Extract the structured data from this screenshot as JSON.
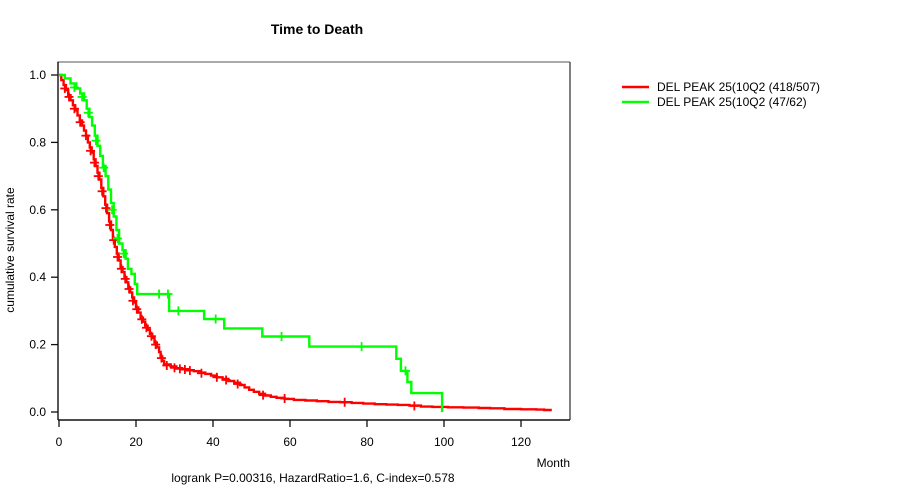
{
  "title": "Time to Death",
  "footer": "logrank P=0.00316, HazardRatio=1.6, C-index=0.578",
  "axes": {
    "y": {
      "label": "cumulative survival rate"
    },
    "x": {
      "label": "Month"
    }
  },
  "legend": {
    "items": [
      {
        "label": "DEL PEAK 25(10Q2 (418/507)",
        "color": "#ff0000"
      },
      {
        "label": "DEL PEAK 25(10Q2 (47/62)",
        "color": "#00ff00"
      }
    ]
  },
  "colors": {
    "series_red": "#ff0000",
    "series_green": "#00ff00",
    "frame_top": "#8e8e8e",
    "axis": "#111111",
    "text": "#000000",
    "background": "#ffffff"
  },
  "chart_data": {
    "type": "line",
    "subtype": "kaplan-meier-step",
    "title": "Time to Death",
    "xlabel": "Month",
    "ylabel": "cumulative survival rate",
    "xlim": [
      0,
      132.5
    ],
    "ylim": [
      0,
      1.04
    ],
    "x_ticks": [
      0,
      20,
      40,
      60,
      80,
      100,
      120
    ],
    "y_ticks": [
      0.0,
      0.2,
      0.4,
      0.6,
      0.8,
      1.0
    ],
    "grid": false,
    "legend_position": "right-outside",
    "annotation": "logrank P=0.00316, HazardRatio=1.6, C-index=0.578",
    "series": [
      {
        "name": "DEL PEAK 25(10Q2 (418/507)",
        "color": "#ff0000",
        "steps": [
          [
            0,
            1.0
          ],
          [
            0.6,
            0.985
          ],
          [
            1.2,
            0.97
          ],
          [
            1.8,
            0.955
          ],
          [
            2.4,
            0.94
          ],
          [
            3,
            0.925
          ],
          [
            3.6,
            0.91
          ],
          [
            4.2,
            0.895
          ],
          [
            4.8,
            0.88
          ],
          [
            5.4,
            0.865
          ],
          [
            6,
            0.85
          ],
          [
            6.5,
            0.835
          ],
          [
            7,
            0.82
          ],
          [
            7.5,
            0.8
          ],
          [
            8,
            0.785
          ],
          [
            8.5,
            0.77
          ],
          [
            9,
            0.75
          ],
          [
            9.5,
            0.73
          ],
          [
            10,
            0.71
          ],
          [
            10.5,
            0.69
          ],
          [
            11,
            0.665
          ],
          [
            11.5,
            0.64
          ],
          [
            12,
            0.615
          ],
          [
            12.5,
            0.59
          ],
          [
            13,
            0.565
          ],
          [
            13.5,
            0.54
          ],
          [
            14,
            0.515
          ],
          [
            14.5,
            0.49
          ],
          [
            15,
            0.47
          ],
          [
            15.5,
            0.45
          ],
          [
            16,
            0.43
          ],
          [
            16.5,
            0.415
          ],
          [
            17,
            0.4
          ],
          [
            17.5,
            0.385
          ],
          [
            18,
            0.37
          ],
          [
            18.5,
            0.355
          ],
          [
            19,
            0.34
          ],
          [
            19.5,
            0.325
          ],
          [
            20,
            0.31
          ],
          [
            20.6,
            0.295
          ],
          [
            21.2,
            0.28
          ],
          [
            21.8,
            0.268
          ],
          [
            22.4,
            0.256
          ],
          [
            23,
            0.244
          ],
          [
            23.6,
            0.232
          ],
          [
            24.2,
            0.22
          ],
          [
            24.8,
            0.206
          ],
          [
            25.4,
            0.192
          ],
          [
            26,
            0.178
          ],
          [
            26.4,
            0.165
          ],
          [
            26.8,
            0.152
          ],
          [
            27.3,
            0.141
          ],
          [
            29,
            0.135
          ],
          [
            30.5,
            0.13
          ],
          [
            32,
            0.127
          ],
          [
            33.5,
            0.124
          ],
          [
            35,
            0.121
          ],
          [
            36.5,
            0.117
          ],
          [
            38,
            0.113
          ],
          [
            39.5,
            0.108
          ],
          [
            41,
            0.103
          ],
          [
            42.5,
            0.098
          ],
          [
            44,
            0.092
          ],
          [
            45.5,
            0.087
          ],
          [
            47,
            0.08
          ],
          [
            48.2,
            0.073
          ],
          [
            49.4,
            0.066
          ],
          [
            50.6,
            0.06
          ],
          [
            52,
            0.054
          ],
          [
            53.5,
            0.049
          ],
          [
            55,
            0.045
          ],
          [
            56.5,
            0.042
          ],
          [
            58.6,
            0.039
          ],
          [
            61,
            0.036
          ],
          [
            64,
            0.034
          ],
          [
            67,
            0.032
          ],
          [
            70,
            0.03
          ],
          [
            73,
            0.029
          ],
          [
            76,
            0.027
          ],
          [
            79,
            0.025
          ],
          [
            82,
            0.023
          ],
          [
            85,
            0.022
          ],
          [
            88,
            0.021
          ],
          [
            91,
            0.019
          ],
          [
            94,
            0.016
          ],
          [
            97,
            0.015
          ],
          [
            101,
            0.014
          ],
          [
            105,
            0.013
          ],
          [
            109,
            0.012
          ],
          [
            112,
            0.011
          ],
          [
            115.7,
            0.009
          ],
          [
            120,
            0.008
          ],
          [
            124,
            0.007
          ],
          [
            126,
            0.006
          ],
          [
            128,
            0.006
          ]
        ],
        "censors": [
          [
            1.5,
            0.96
          ],
          [
            2.6,
            0.935
          ],
          [
            4,
            0.9
          ],
          [
            5.5,
            0.86
          ],
          [
            7,
            0.82
          ],
          [
            8.2,
            0.775
          ],
          [
            9.2,
            0.74
          ],
          [
            10.2,
            0.7
          ],
          [
            11.2,
            0.655
          ],
          [
            12.2,
            0.605
          ],
          [
            13.2,
            0.555
          ],
          [
            14.2,
            0.51
          ],
          [
            15.2,
            0.46
          ],
          [
            16.2,
            0.425
          ],
          [
            17.2,
            0.395
          ],
          [
            18.2,
            0.365
          ],
          [
            19.2,
            0.33
          ],
          [
            20.2,
            0.305
          ],
          [
            21.5,
            0.275
          ],
          [
            22.7,
            0.25
          ],
          [
            24,
            0.225
          ],
          [
            25.1,
            0.2
          ],
          [
            26.6,
            0.16
          ],
          [
            28,
            0.138
          ],
          [
            30,
            0.131
          ],
          [
            31.4,
            0.128
          ],
          [
            32.7,
            0.126
          ],
          [
            34,
            0.123
          ],
          [
            37,
            0.115
          ],
          [
            41,
            0.103
          ],
          [
            43.4,
            0.095
          ],
          [
            46.4,
            0.083
          ],
          [
            53,
            0.05
          ],
          [
            58.6,
            0.04
          ],
          [
            74.2,
            0.029
          ],
          [
            92.3,
            0.018
          ]
        ]
      },
      {
        "name": "DEL PEAK 25(10Q2 (47/62)",
        "color": "#00ff00",
        "steps": [
          [
            0,
            1.0
          ],
          [
            1.5,
            0.99
          ],
          [
            3,
            0.975
          ],
          [
            4.5,
            0.96
          ],
          [
            5.5,
            0.945
          ],
          [
            6.5,
            0.925
          ],
          [
            7.2,
            0.9
          ],
          [
            7.9,
            0.875
          ],
          [
            8.6,
            0.85
          ],
          [
            9.3,
            0.82
          ],
          [
            10,
            0.79
          ],
          [
            10.7,
            0.76
          ],
          [
            11.4,
            0.73
          ],
          [
            12.1,
            0.7
          ],
          [
            12.8,
            0.66
          ],
          [
            13.5,
            0.62
          ],
          [
            14.2,
            0.58
          ],
          [
            14.9,
            0.54
          ],
          [
            15.6,
            0.5
          ],
          [
            16.5,
            0.48
          ],
          [
            17.3,
            0.455
          ],
          [
            17.9,
            0.425
          ],
          [
            18.8,
            0.41
          ],
          [
            19.7,
            0.38
          ],
          [
            20.3,
            0.35
          ],
          [
            28.6,
            0.3
          ],
          [
            37.7,
            0.276
          ],
          [
            42.9,
            0.248
          ],
          [
            52.8,
            0.224
          ],
          [
            65,
            0.194
          ],
          [
            87.6,
            0.158
          ],
          [
            88.8,
            0.122
          ],
          [
            90.5,
            0.089
          ],
          [
            91.5,
            0.056
          ],
          [
            99.5,
            0
          ]
        ],
        "censors": [
          [
            4,
            0.963
          ],
          [
            6,
            0.935
          ],
          [
            7.6,
            0.888
          ],
          [
            9.6,
            0.805
          ],
          [
            11.6,
            0.725
          ],
          [
            13.8,
            0.6
          ],
          [
            15.2,
            0.515
          ],
          [
            16.8,
            0.47
          ],
          [
            26,
            0.35
          ],
          [
            28.3,
            0.35
          ],
          [
            31,
            0.3
          ],
          [
            40.7,
            0.276
          ],
          [
            57.8,
            0.224
          ],
          [
            78.6,
            0.194
          ],
          [
            90,
            0.122
          ]
        ]
      }
    ]
  }
}
